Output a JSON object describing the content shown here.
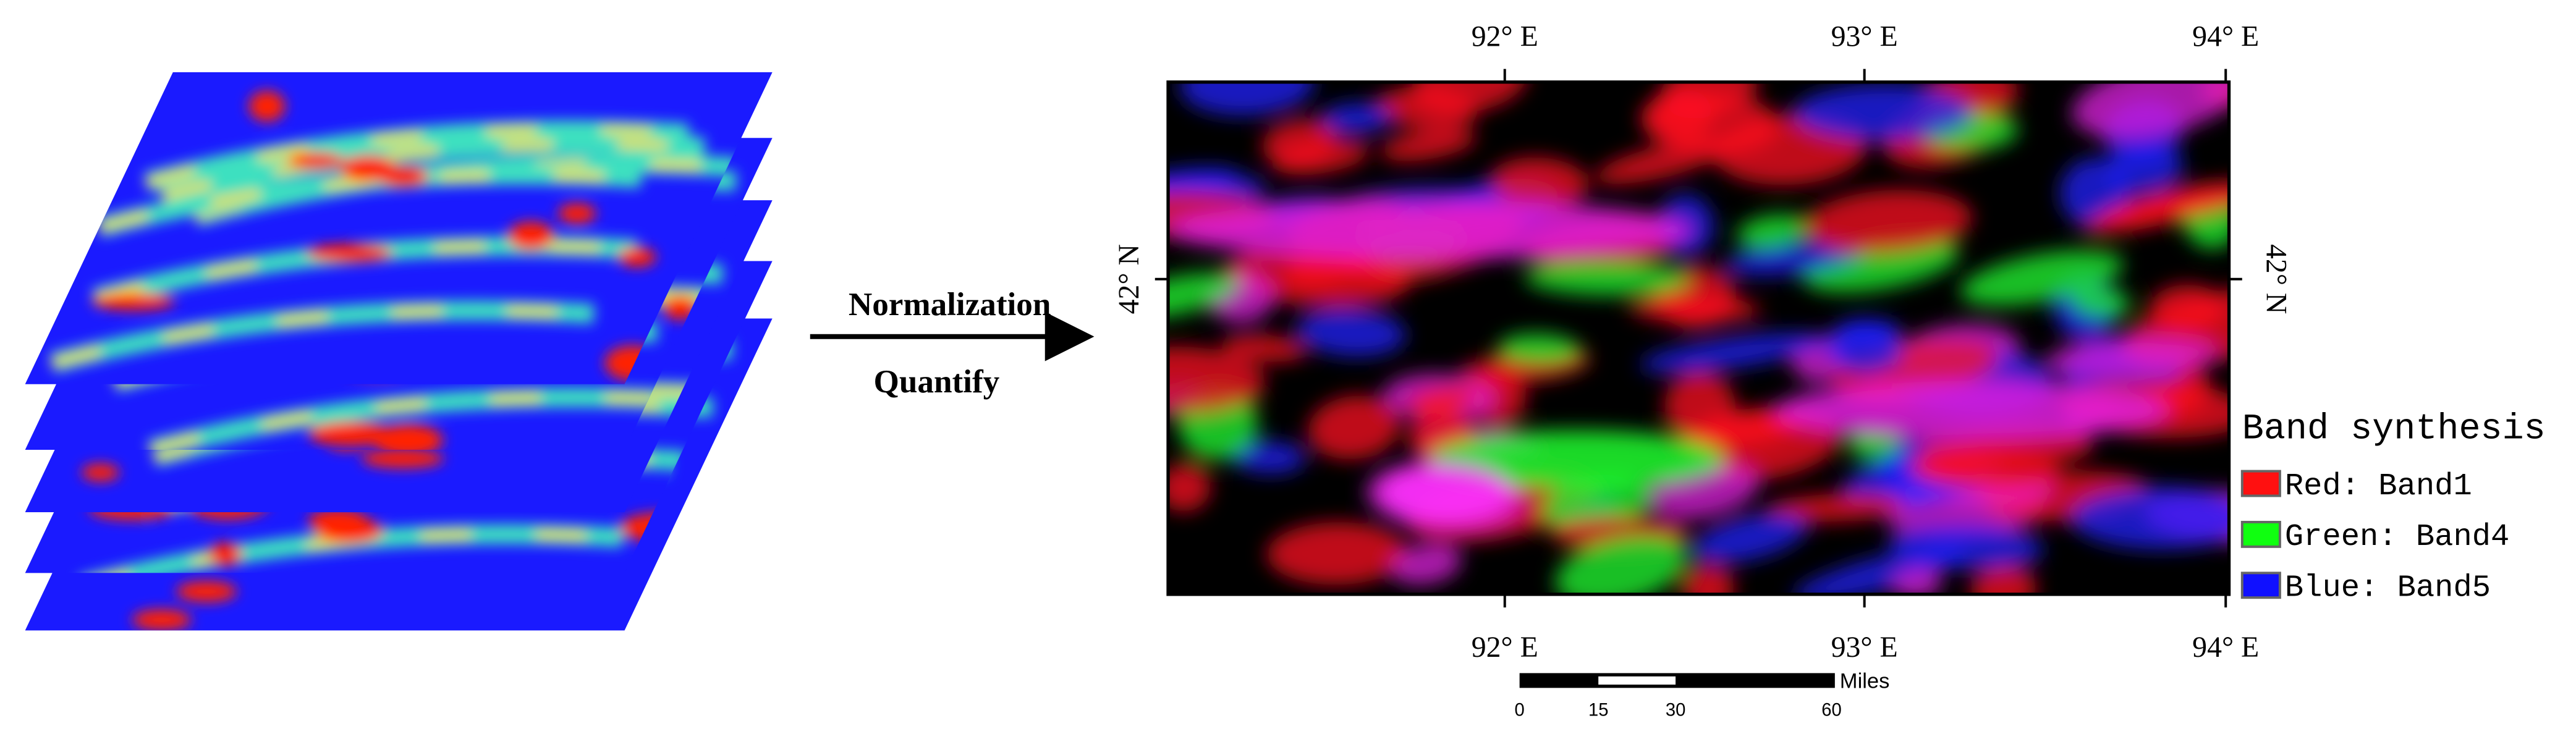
{
  "arrow": {
    "top_label": "Normalization",
    "bottom_label": "Quantify"
  },
  "map": {
    "x_labels_top": [
      "92° E",
      "93° E",
      "94° E"
    ],
    "x_labels_bottom": [
      "92° E",
      "93° E",
      "94° E"
    ],
    "y_label_left": "42° N",
    "y_label_right": "42° N"
  },
  "legend": {
    "title": "Band synthesis",
    "items": [
      "Red: Band1",
      "Green: Band4",
      "Blue: Band5"
    ]
  },
  "scale_bar": {
    "unit": "Miles",
    "labels": [
      "0",
      "15",
      "30",
      "60"
    ]
  }
}
